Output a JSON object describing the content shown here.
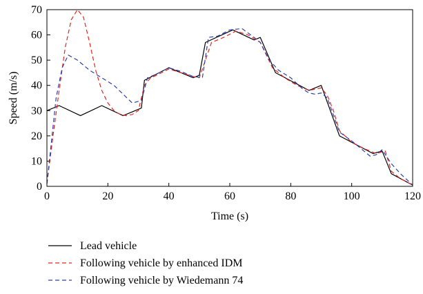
{
  "chart_data": {
    "type": "line",
    "title": "",
    "xlabel": "Time (s)",
    "ylabel": "Speed (m/s)",
    "xlim": [
      0,
      120
    ],
    "ylim": [
      0,
      70
    ],
    "xticks": [
      0,
      20,
      40,
      60,
      80,
      100,
      120
    ],
    "yticks": [
      0,
      10,
      20,
      30,
      40,
      50,
      60,
      70
    ],
    "grid": false,
    "legend_position": "below",
    "series": [
      {
        "name": "Lead vehicle",
        "color": "#000000",
        "style": "solid",
        "x": [
          0,
          4,
          11,
          18,
          25,
          28,
          31,
          32,
          40,
          48,
          50,
          52,
          61,
          68,
          70,
          75,
          86,
          90,
          96,
          107,
          110,
          113,
          120
        ],
        "y": [
          30,
          32,
          28,
          32,
          28,
          29.5,
          31,
          42,
          47,
          43,
          44,
          57,
          62,
          58,
          59,
          45,
          38,
          40,
          20,
          13,
          14,
          5,
          0.5
        ]
      },
      {
        "name": "Following vehicle by enhanced IDM",
        "color": "#e8231f",
        "style": "dashed",
        "x": [
          0,
          2,
          4,
          6,
          8,
          10,
          12,
          14,
          16,
          18,
          20,
          22,
          24,
          26,
          28,
          30,
          32,
          34,
          36,
          40,
          44,
          48,
          50,
          52,
          54,
          58,
          62,
          66,
          70,
          72,
          74,
          78,
          82,
          86,
          90,
          92,
          94,
          96,
          100,
          104,
          108,
          111,
          113,
          116,
          120
        ],
        "y": [
          1,
          20,
          38,
          55,
          66,
          70,
          67,
          57,
          46,
          38,
          33,
          30,
          28.5,
          28,
          28.5,
          30,
          40,
          43,
          44,
          46.5,
          45,
          43.5,
          43,
          50,
          57,
          59,
          61.5,
          60,
          57,
          52,
          47,
          43,
          40,
          38,
          39,
          36,
          30,
          22,
          17.5,
          15,
          13,
          14,
          6,
          3,
          0.5
        ]
      },
      {
        "name": "Following vehicle by Wiedemann 74",
        "color": "#2a3fb0",
        "style": "dashed",
        "x": [
          0,
          3,
          5,
          7,
          10,
          14,
          18,
          22,
          25,
          28,
          31,
          33,
          36,
          40,
          44,
          48,
          51,
          53,
          56,
          60,
          64,
          68,
          70,
          73,
          76,
          80,
          84,
          86,
          88,
          90,
          92,
          96,
          100,
          104,
          106,
          108,
          110,
          113,
          116,
          120
        ],
        "y": [
          1,
          35,
          47,
          52,
          50,
          46,
          43,
          40,
          36.5,
          33,
          34,
          43,
          44.5,
          47,
          45.5,
          43.5,
          43,
          59,
          59.5,
          62,
          62.5,
          59,
          57,
          50,
          46,
          43,
          38.5,
          37,
          36.5,
          37,
          35,
          21.5,
          18,
          14,
          12,
          12.5,
          14.5,
          9,
          5,
          0.5
        ]
      }
    ]
  }
}
